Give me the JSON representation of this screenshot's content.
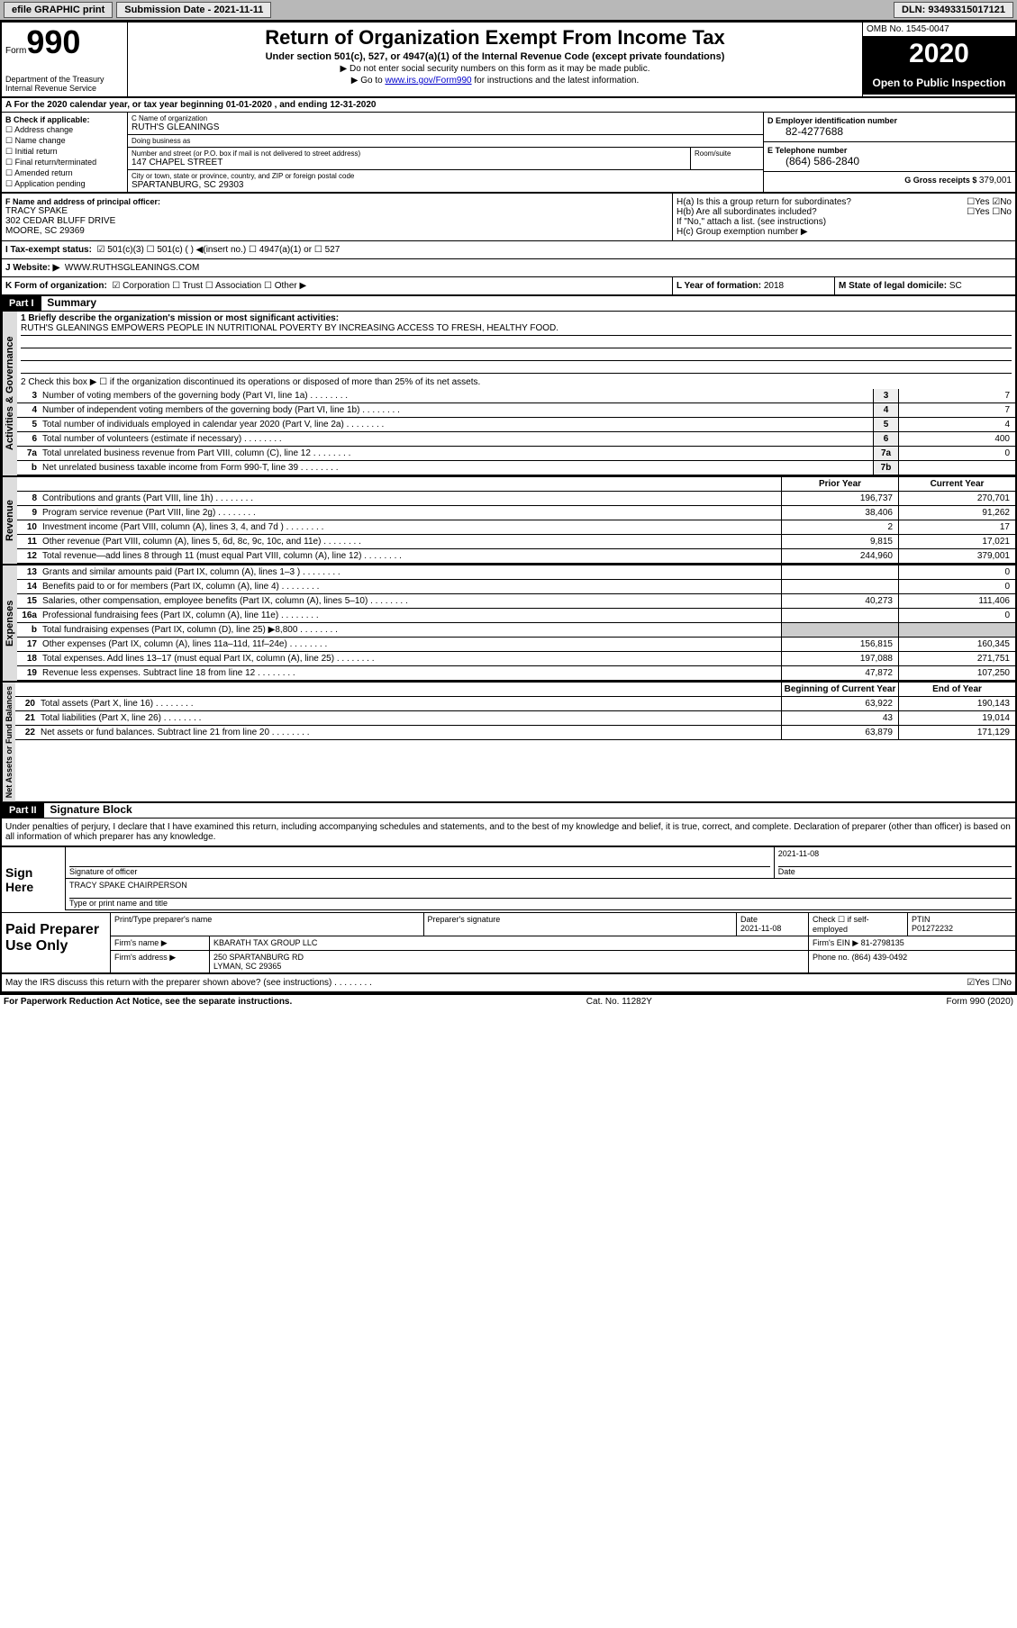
{
  "topbar": {
    "efile": "efile GRAPHIC print",
    "subdate_lbl": "Submission Date - 2021-11-11",
    "dln": "DLN: 93493315017121"
  },
  "header": {
    "form": "Form",
    "num": "990",
    "dept": "Department of the Treasury\nInternal Revenue Service",
    "title": "Return of Organization Exempt From Income Tax",
    "sub": "Under section 501(c), 527, or 4947(a)(1) of the Internal Revenue Code (except private foundations)",
    "note1": "▶ Do not enter social security numbers on this form as it may be made public.",
    "note2_a": "▶ Go to ",
    "note2_link": "www.irs.gov/Form990",
    "note2_b": " for instructions and the latest information.",
    "omb": "OMB No. 1545-0047",
    "year": "2020",
    "pub": "Open to Public Inspection"
  },
  "line_a": "A For the 2020 calendar year, or tax year beginning 01-01-2020   , and ending 12-31-2020",
  "box_b": {
    "hdr": "B Check if applicable:",
    "items": [
      "☐ Address change",
      "☐ Name change",
      "☐ Initial return",
      "☐ Final return/terminated",
      "☐ Amended return",
      "☐ Application pending"
    ]
  },
  "box_c": {
    "name_lbl": "C Name of organization",
    "name": "RUTH'S GLEANINGS",
    "dba_lbl": "Doing business as",
    "dba": "",
    "addr_lbl": "Number and street (or P.O. box if mail is not delivered to street address)",
    "addr": "147 CHAPEL STREET",
    "room_lbl": "Room/suite",
    "city_lbl": "City or town, state or province, country, and ZIP or foreign postal code",
    "city": "SPARTANBURG, SC  29303"
  },
  "box_d": {
    "lbl": "D Employer identification number",
    "val": "82-4277688"
  },
  "box_e": {
    "lbl": "E Telephone number",
    "val": "(864) 586-2840"
  },
  "box_g": {
    "lbl": "G Gross receipts $ ",
    "val": "379,001"
  },
  "box_f": {
    "lbl": "F  Name and address of principal officer:",
    "name": "TRACY SPAKE",
    "addr1": "302 CEDAR BLUFF DRIVE",
    "addr2": "MOORE, SC  29369"
  },
  "box_h": {
    "ha": "H(a)  Is this a group return for subordinates?",
    "ha_ans": "☐Yes ☑No",
    "hb": "H(b)  Are all subordinates included?",
    "hb_ans": "☐Yes ☐No",
    "hb_note": "If \"No,\" attach a list. (see instructions)",
    "hc": "H(c)  Group exemption number ▶"
  },
  "box_i": {
    "lbl": "I  Tax-exempt status:",
    "opts": "☑ 501(c)(3)   ☐ 501(c) (  ) ◀(insert no.)   ☐ 4947(a)(1) or  ☐ 527"
  },
  "box_j": {
    "lbl": "J  Website: ▶",
    "val": "WWW.RUTHSGLEANINGS.COM"
  },
  "box_k": {
    "lbl": "K Form of organization:",
    "val": "☑ Corporation  ☐ Trust  ☐ Association  ☐ Other ▶"
  },
  "box_l": {
    "lbl": "L Year of formation: ",
    "val": "2018"
  },
  "box_m": {
    "lbl": "M State of legal domicile: ",
    "val": "SC"
  },
  "part1": {
    "hdr": "Part I",
    "title": "Summary",
    "vtab1": "Activities & Governance",
    "line1_lbl": "1  Briefly describe the organization's mission or most significant activities:",
    "line1_val": "RUTH'S GLEANINGS EMPOWERS PEOPLE IN NUTRITIONAL POVERTY BY INCREASING ACCESS TO FRESH, HEALTHY FOOD.",
    "line2": "2    Check this box ▶ ☐  if the organization discontinued its operations or disposed of more than 25% of its net assets.",
    "rows_gov": [
      {
        "n": "3",
        "t": "Number of voting members of the governing body (Part VI, line 1a)",
        "b": "3",
        "a": "7"
      },
      {
        "n": "4",
        "t": "Number of independent voting members of the governing body (Part VI, line 1b)",
        "b": "4",
        "a": "7"
      },
      {
        "n": "5",
        "t": "Total number of individuals employed in calendar year 2020 (Part V, line 2a)",
        "b": "5",
        "a": "4"
      },
      {
        "n": "6",
        "t": "Total number of volunteers (estimate if necessary)",
        "b": "6",
        "a": "400"
      },
      {
        "n": "7a",
        "t": "Total unrelated business revenue from Part VIII, column (C), line 12",
        "b": "7a",
        "a": "0"
      },
      {
        "n": "b",
        "t": "Net unrelated business taxable income from Form 990-T, line 39",
        "b": "7b",
        "a": ""
      }
    ],
    "py_hdr": "Prior Year",
    "cy_hdr": "Current Year",
    "vtab2": "Revenue",
    "rows_rev": [
      {
        "n": "8",
        "t": "Contributions and grants (Part VIII, line 1h)",
        "py": "196,737",
        "cy": "270,701"
      },
      {
        "n": "9",
        "t": "Program service revenue (Part VIII, line 2g)",
        "py": "38,406",
        "cy": "91,262"
      },
      {
        "n": "10",
        "t": "Investment income (Part VIII, column (A), lines 3, 4, and 7d )",
        "py": "2",
        "cy": "17"
      },
      {
        "n": "11",
        "t": "Other revenue (Part VIII, column (A), lines 5, 6d, 8c, 9c, 10c, and 11e)",
        "py": "9,815",
        "cy": "17,021"
      },
      {
        "n": "12",
        "t": "Total revenue—add lines 8 through 11 (must equal Part VIII, column (A), line 12)",
        "py": "244,960",
        "cy": "379,001"
      }
    ],
    "vtab3": "Expenses",
    "rows_exp": [
      {
        "n": "13",
        "t": "Grants and similar amounts paid (Part IX, column (A), lines 1–3 )",
        "py": "",
        "cy": "0"
      },
      {
        "n": "14",
        "t": "Benefits paid to or for members (Part IX, column (A), line 4)",
        "py": "",
        "cy": "0"
      },
      {
        "n": "15",
        "t": "Salaries, other compensation, employee benefits (Part IX, column (A), lines 5–10)",
        "py": "40,273",
        "cy": "111,406"
      },
      {
        "n": "16a",
        "t": "Professional fundraising fees (Part IX, column (A), line 11e)",
        "py": "",
        "cy": "0"
      },
      {
        "n": "b",
        "t": "Total fundraising expenses (Part IX, column (D), line 25) ▶8,800",
        "py": "—shade—",
        "cy": "—shade—"
      },
      {
        "n": "17",
        "t": "Other expenses (Part IX, column (A), lines 11a–11d, 11f–24e)",
        "py": "156,815",
        "cy": "160,345"
      },
      {
        "n": "18",
        "t": "Total expenses. Add lines 13–17 (must equal Part IX, column (A), line 25)",
        "py": "197,088",
        "cy": "271,751"
      },
      {
        "n": "19",
        "t": "Revenue less expenses. Subtract line 18 from line 12",
        "py": "47,872",
        "cy": "107,250"
      }
    ],
    "by_hdr": "Beginning of Current Year",
    "ey_hdr": "End of Year",
    "vtab4": "Net Assets or Fund Balances",
    "rows_na": [
      {
        "n": "20",
        "t": "Total assets (Part X, line 16)",
        "py": "63,922",
        "cy": "190,143"
      },
      {
        "n": "21",
        "t": "Total liabilities (Part X, line 26)",
        "py": "43",
        "cy": "19,014"
      },
      {
        "n": "22",
        "t": "Net assets or fund balances. Subtract line 21 from line 20",
        "py": "63,879",
        "cy": "171,129"
      }
    ]
  },
  "part2": {
    "hdr": "Part II",
    "title": "Signature Block",
    "penalty": "Under penalties of perjury, I declare that I have examined this return, including accompanying schedules and statements, and to the best of my knowledge and belief, it is true, correct, and complete. Declaration of preparer (other than officer) is based on all information of which preparer has any knowledge."
  },
  "sign": {
    "lbl": "Sign Here",
    "sig_lbl": "Signature of officer",
    "date_lbl": "Date",
    "date": "2021-11-08",
    "name": "TRACY SPAKE CHAIRPERSON",
    "name_lbl": "Type or print name and title"
  },
  "prep": {
    "lbl": "Paid Preparer Use Only",
    "r1": {
      "c1": "Print/Type preparer's name",
      "c2": "Preparer's signature",
      "c3": "Date\n2021-11-08",
      "c4": "Check ☐ if self-employed",
      "c5": "PTIN\nP01272232"
    },
    "r2": {
      "lbl": "Firm's name    ▶",
      "val": "KBARATH TAX GROUP LLC",
      "ein_lbl": "Firm's EIN ▶",
      "ein": "81-2798135"
    },
    "r3": {
      "lbl": "Firm's address ▶",
      "val": "250 SPARTANBURG RD\nLYMAN, SC  29365",
      "ph_lbl": "Phone no.",
      "ph": "(864) 439-0492"
    }
  },
  "discuss": {
    "txt": "May the IRS discuss this return with the preparer shown above? (see instructions)",
    "ans": "☑Yes  ☐No"
  },
  "footer": {
    "l": "For Paperwork Reduction Act Notice, see the separate instructions.",
    "c": "Cat. No. 11282Y",
    "r": "Form 990 (2020)"
  }
}
